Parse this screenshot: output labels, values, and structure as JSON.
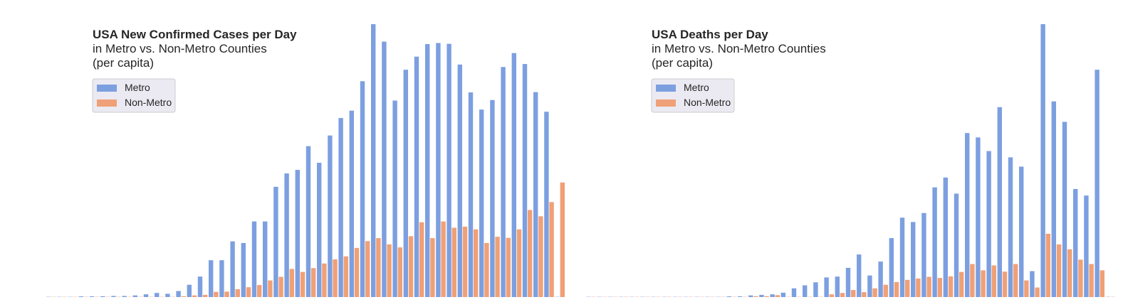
{
  "colors": {
    "metro": "#7c9fe0",
    "nonmetro": "#f0a077",
    "legend_bg": "#ebeaf2",
    "legend_border": "#cccccc"
  },
  "chart_data": [
    {
      "type": "bar",
      "title": "USA New Confirmed Cases per Day",
      "subtitle_lines": [
        "in Metro vs. Non-Metro Counties",
        "(per capita)"
      ],
      "legend": [
        "Metro",
        "Non-Metro"
      ],
      "legend_position": "upper-left",
      "grid": false,
      "x_count": 48,
      "ylim": [
        0,
        100
      ],
      "series": [
        {
          "name": "Metro",
          "values": [
            0,
            0,
            0,
            0.2,
            0.2,
            0.3,
            0.4,
            0.4,
            0.6,
            1.0,
            1.5,
            1.2,
            2.2,
            4.5,
            7.5,
            13.5,
            13.5,
            20.4,
            19.8,
            27.7,
            27.7,
            40.4,
            45.3,
            46.6,
            55.3,
            49.2,
            59.2,
            65.6,
            68.3,
            79.1,
            100,
            93.6,
            72.0,
            83.3,
            88.1,
            92.7,
            93.1,
            92.8,
            85.2,
            75.0,
            68.7,
            72.2,
            84.3,
            89.4,
            85.4,
            75.1,
            67.9,
            0
          ]
        },
        {
          "name": "Non-Metro",
          "values": [
            0,
            0,
            0,
            0,
            0,
            0,
            0,
            0,
            0,
            0,
            0,
            0,
            0.3,
            0.6,
            0.8,
            1.9,
            2.0,
            2.9,
            3.6,
            4.4,
            6.1,
            7.4,
            10.3,
            9.2,
            10.6,
            12.3,
            13.8,
            14.9,
            18.0,
            20.5,
            21.6,
            19.3,
            18.2,
            22.3,
            27.4,
            21.6,
            27.7,
            25.4,
            25.8,
            24.8,
            19.8,
            22.1,
            21.7,
            24.8,
            31.9,
            29.6,
            34.8,
            42.0
          ]
        }
      ]
    },
    {
      "type": "bar",
      "title": "USA Deaths per Day",
      "subtitle_lines": [
        "in Metro vs. Non-Metro Counties",
        "(per capita)"
      ],
      "legend": [
        "Metro",
        "Non-Metro"
      ],
      "legend_position": "upper-left",
      "grid": false,
      "x_count": 49,
      "ylim": [
        0,
        100
      ],
      "series": [
        {
          "name": "Metro",
          "values": [
            0,
            0,
            0,
            0,
            0,
            0,
            0,
            0,
            0,
            0,
            0,
            0,
            0,
            0.2,
            0.2,
            0.6,
            0.8,
            1.0,
            1.6,
            3.2,
            4.3,
            5.4,
            7.2,
            7.5,
            10.7,
            15.6,
            7.9,
            13.0,
            21.6,
            29.1,
            27.5,
            30.8,
            40.2,
            43.8,
            37.9,
            60.1,
            58.5,
            53.5,
            69.6,
            51.2,
            47.8,
            9.5,
            100,
            71.7,
            64.2,
            39.6,
            37.2,
            83.3,
            0
          ]
        },
        {
          "name": "Non-Metro",
          "values": [
            0,
            0,
            0,
            0,
            0,
            0,
            0,
            0,
            0,
            0,
            0,
            0,
            0,
            0,
            0,
            0.3,
            0.3,
            0.7,
            0,
            0,
            0,
            0,
            1.0,
            1.5,
            2.6,
            1.8,
            3.2,
            4.5,
            5.5,
            6.3,
            6.8,
            7.4,
            7.0,
            7.6,
            9.2,
            12.1,
            9.8,
            11.6,
            9.3,
            12.1,
            6.1,
            3.5,
            23.2,
            19.3,
            17.5,
            13.7,
            12.1,
            9.8,
            0
          ]
        }
      ]
    }
  ]
}
